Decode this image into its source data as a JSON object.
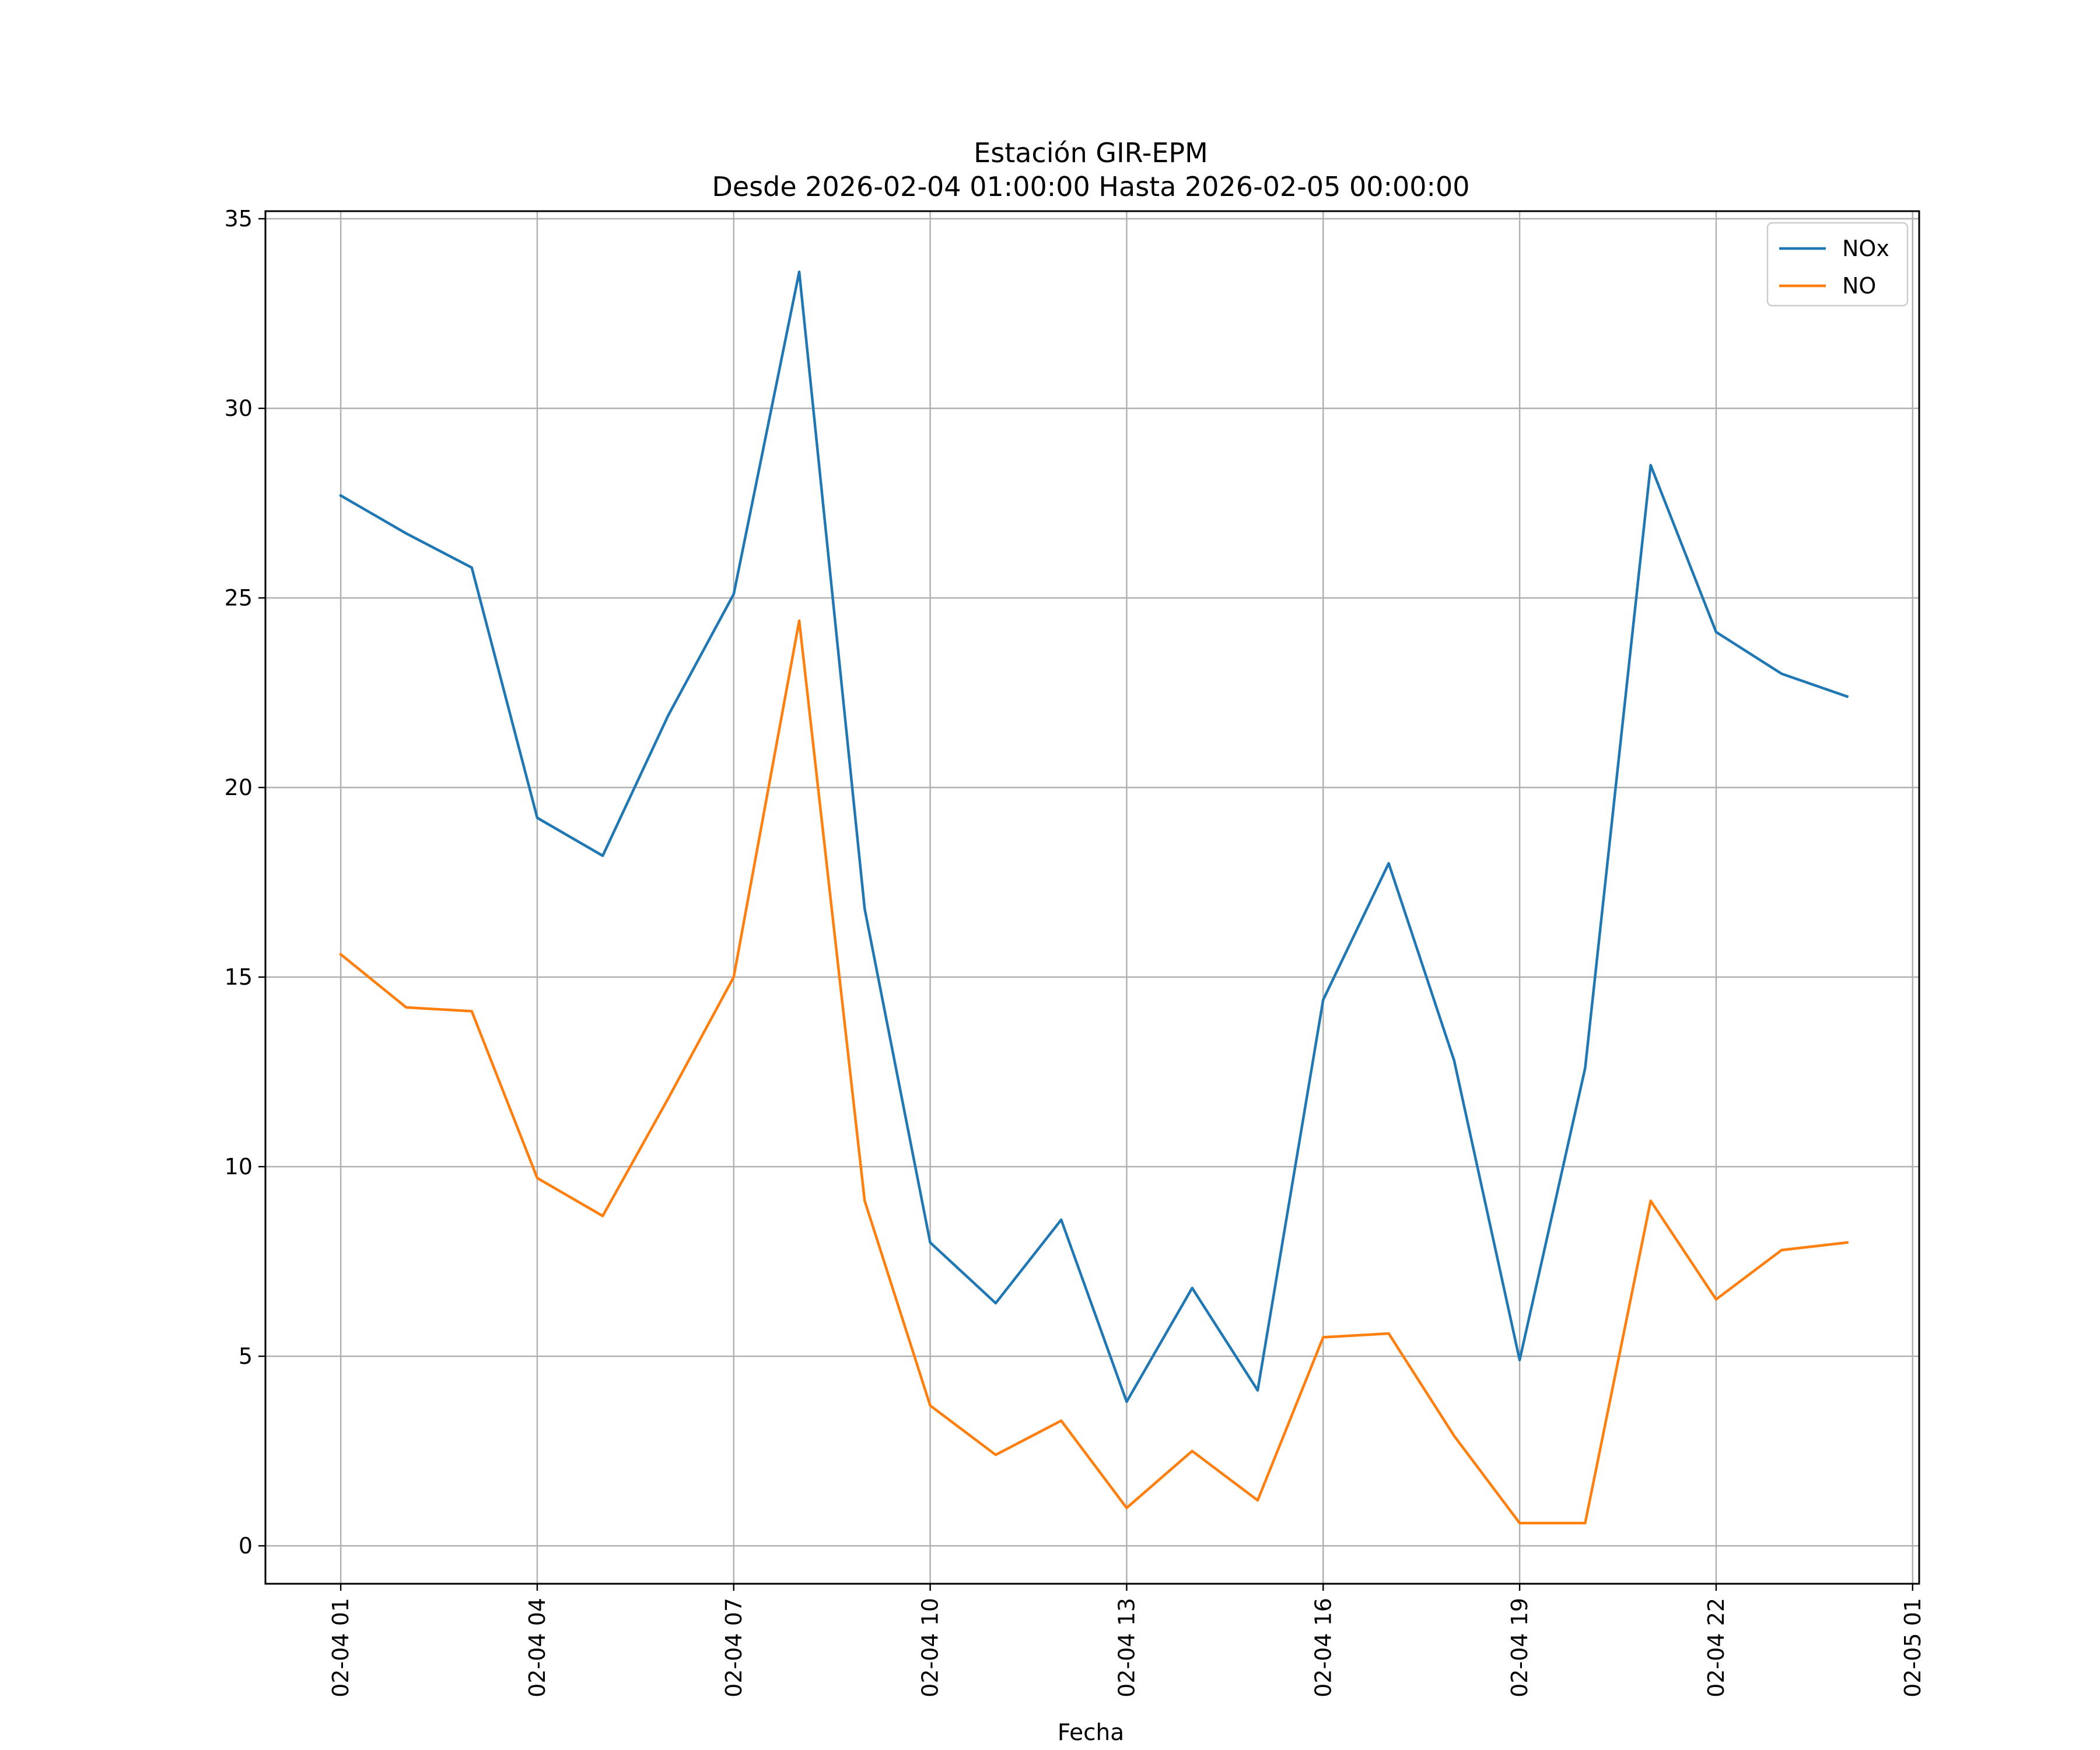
{
  "chart_data": {
    "type": "line",
    "title": "Estación GIR-EPM",
    "subtitle": "Desde 2026-02-04 01:00:00 Hasta 2026-02-05 00:00:00",
    "xlabel": "Fecha",
    "ylabel": "",
    "x": [
      "02-04 01",
      "02-04 02",
      "02-04 03",
      "02-04 04",
      "02-04 05",
      "02-04 06",
      "02-04 07",
      "02-04 08",
      "02-04 09",
      "02-04 10",
      "02-04 11",
      "02-04 12",
      "02-04 13",
      "02-04 14",
      "02-04 15",
      "02-04 16",
      "02-04 17",
      "02-04 18",
      "02-04 19",
      "02-04 20",
      "02-04 21",
      "02-04 22",
      "02-04 23",
      "02-05 00"
    ],
    "x_hours": [
      1,
      2,
      3,
      4,
      5,
      6,
      7,
      8,
      9,
      10,
      11,
      12,
      13,
      14,
      15,
      16,
      17,
      18,
      19,
      20,
      21,
      22,
      23,
      24
    ],
    "xlim": [
      -0.15,
      25.1
    ],
    "x_tick_hours": [
      1,
      4,
      7,
      10,
      13,
      16,
      19,
      22,
      25
    ],
    "x_tick_labels": [
      "02-04 01",
      "02-04 04",
      "02-04 07",
      "02-04 10",
      "02-04 13",
      "02-04 16",
      "02-04 19",
      "02-04 22",
      "02-05 01"
    ],
    "ylim": [
      -1,
      35.2
    ],
    "y_ticks": [
      0,
      5,
      10,
      15,
      20,
      25,
      30,
      35
    ],
    "y_tick_labels": [
      "0",
      "5",
      "10",
      "15",
      "20",
      "25",
      "30",
      "35"
    ],
    "grid": true,
    "legend_position": "top-right",
    "series": [
      {
        "name": "NOx",
        "color": "#1f77b4",
        "values": [
          27.7,
          26.7,
          25.8,
          19.2,
          18.2,
          21.9,
          25.1,
          33.6,
          16.8,
          8.0,
          6.4,
          8.6,
          3.8,
          6.8,
          4.1,
          14.4,
          18.0,
          12.8,
          4.9,
          12.6,
          28.5,
          24.1,
          23.0,
          22.4
        ]
      },
      {
        "name": "NO",
        "color": "#ff7f0e",
        "values": [
          15.6,
          14.2,
          14.1,
          9.7,
          8.7,
          11.8,
          15.0,
          24.4,
          9.1,
          3.7,
          2.4,
          3.3,
          1.0,
          2.5,
          1.2,
          5.5,
          5.6,
          2.9,
          0.6,
          0.6,
          9.1,
          6.5,
          7.8,
          8.0
        ]
      }
    ]
  }
}
